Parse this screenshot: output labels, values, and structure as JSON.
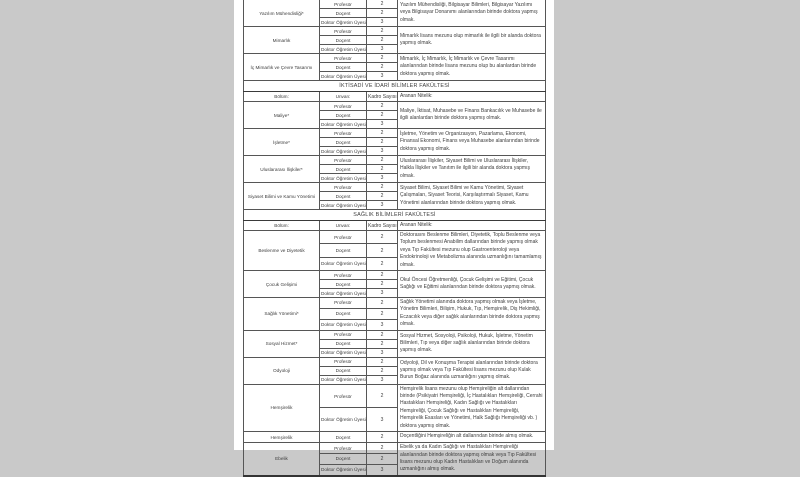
{
  "document": {
    "background_color": "#c9c9c9",
    "page_color": "#ffffff",
    "border_color": "#565656",
    "text_color": "#3d3d3d"
  },
  "table": {
    "column_headers": {
      "department": "Bölüm:",
      "title": "Unvan:",
      "count": "Kadro Sayısı:",
      "requirement": "Aranan Nitelik:"
    },
    "sections": [
      {
        "faculty": null,
        "show_headers": false,
        "blocks": [
          {
            "department": "Yazılım Mühendisliği*",
            "positions": [
              {
                "title": "Profesör",
                "count": "2"
              },
              {
                "title": "Doçent",
                "count": "2"
              },
              {
                "title": "Doktor Öğretim Üyesi",
                "count": "3"
              }
            ],
            "requirement": "Yazılım Mühendisliği, Bilgisayar Bilimleri, Bilgisayar Yazılımı veya Bilgisayar Donanımı alanlarından birinde doktora yapmış olmak."
          },
          {
            "department": "Mimarlık",
            "positions": [
              {
                "title": "Profesör",
                "count": "2"
              },
              {
                "title": "Doçent",
                "count": "2"
              },
              {
                "title": "Doktor Öğretim Üyesi",
                "count": "3"
              }
            ],
            "requirement": "Mimarlık lisans mezunu olup mimarlık ile ilgili bir alanda doktora yapmış olmak."
          },
          {
            "department": "İç Mimarlık ve Çevre Tasarımı",
            "positions": [
              {
                "title": "Profesör",
                "count": "2"
              },
              {
                "title": "Doçent",
                "count": "2"
              },
              {
                "title": "Doktor Öğretim Üyesi",
                "count": "3"
              }
            ],
            "requirement": "Mimarlık, İç Mimarlık, İç Mimarlık ve Çevre Tasarımı alanlarından birinde lisans mezunu olup bu alanlardan birinde doktora yapmış olmak."
          }
        ]
      },
      {
        "faculty": "İKTİSADİ VE İDARİ BİLİMLER FAKÜLTESİ",
        "show_headers": true,
        "blocks": [
          {
            "department": "Maliye*",
            "positions": [
              {
                "title": "Profesör",
                "count": "2"
              },
              {
                "title": "Doçent",
                "count": "2"
              },
              {
                "title": "Doktor Öğretim Üyesi",
                "count": "3"
              }
            ],
            "requirement": "Maliye, İktisat, Muhasebe ve Finans Bankacılık ve Muhasebe ile ilgili alanlardan birinde doktora yapmış olmak."
          },
          {
            "department": "İşletme*",
            "positions": [
              {
                "title": "Profesör",
                "count": "2"
              },
              {
                "title": "Doçent",
                "count": "2"
              },
              {
                "title": "Doktor Öğretim Üyesi",
                "count": "3"
              }
            ],
            "requirement": "İşletme, Yönetim ve Organizasyon, Pazarlama, Ekonomi, Finansal Ekonomi, Finans veya Muhasebe alanlarından birinde doktora yapmış olmak."
          },
          {
            "department": "Uluslararası İlişkiler*",
            "positions": [
              {
                "title": "Profesör",
                "count": "2"
              },
              {
                "title": "Doçent",
                "count": "2"
              },
              {
                "title": "Doktor Öğretim Üyesi",
                "count": "3"
              }
            ],
            "requirement": "Uluslararası İlişkiler, Siyaset Bilimi ve Uluslararası İlişkiler, Halkla İlişkiler ve Tanıtım ile ilgili bir alanda doktora yapmış olmak."
          },
          {
            "department": "Siyaset Bilimi ve Kamu Yönetimi",
            "positions": [
              {
                "title": "Profesör",
                "count": "2"
              },
              {
                "title": "Doçent",
                "count": "2"
              },
              {
                "title": "Doktor Öğretim Üyesi",
                "count": "3"
              }
            ],
            "requirement": "Siyaset Bilimi, Siyaset Bilimi ve Kamu Yönetimi, Siyaset Çalışmaları, Siyaset Teorisi, Karşılaştırmalı Siyaset, Kamu Yönetimi alanlarından birinde doktora yapmış olmak."
          }
        ]
      },
      {
        "faculty": "SAĞLIK BİLİMLERİ FAKÜLTESİ",
        "show_headers": true,
        "blocks": [
          {
            "department": "Beslenme ve Diyetetik",
            "positions": [
              {
                "title": "Profesör",
                "count": "2"
              },
              {
                "title": "Doçent",
                "count": "2"
              },
              {
                "title": "Doktor Öğretim Üyesi",
                "count": "2"
              }
            ],
            "requirement": "Doktorasını Beslenme Bilimleri, Diyetetik, Toplu Beslenme veya Toplum beslenmesi Anabilim dallarından birinde yapmış olmak veya Tıp Fakültesi mezunu olup Gastroenteroloji veya Endokrinoloji ve Metabolizma alanında uzmanlığını tamamlamış olmak."
          },
          {
            "department": "Çocuk Gelişimi",
            "positions": [
              {
                "title": "Profesör",
                "count": "2"
              },
              {
                "title": "Doçent",
                "count": "2"
              },
              {
                "title": "Doktor Öğretim Üyesi",
                "count": "3"
              }
            ],
            "requirement": "Okul Öncesi Öğretmenliği, Çocuk Gelişimi ve Eğitimi, Çocuk Sağlığı ve Eğitimi alanlarından birinde doktora yapmış olmak."
          },
          {
            "department": "Sağlık Yönetimi*",
            "positions": [
              {
                "title": "Profesör",
                "count": "2"
              },
              {
                "title": "Doçent",
                "count": "2"
              },
              {
                "title": "Doktor Öğretim Üyesi",
                "count": "3"
              }
            ],
            "requirement": "Sağlık Yönetimi alanında doktora yapmış olmak veya İşletme, Yönetim Bilimleri, Bilişim, Hukuk, Tıp, Hemşirelik, Diş Hekimliği, Eczacılık veya diğer sağlık alanlarından birinde doktora yapmış olmak."
          },
          {
            "department": "Sosyal Hizmet*",
            "positions": [
              {
                "title": "Profesör",
                "count": "2"
              },
              {
                "title": "Doçent",
                "count": "2"
              },
              {
                "title": "Doktor Öğretim Üyesi",
                "count": "3"
              }
            ],
            "requirement": "Sosyal Hizmet, Sosyoloji, Psikoloji, Hukuk, İşletme, Yönetim Bilimleri, Tıp veya diğer sağlık alanlarından birinde doktora yapmış olmak."
          },
          {
            "department": "Odyoloji",
            "positions": [
              {
                "title": "Profesör",
                "count": "2"
              },
              {
                "title": "Doçent",
                "count": "2"
              },
              {
                "title": "Doktor Öğretim Üyesi",
                "count": "3"
              }
            ],
            "requirement": "Odyoloji, Dil ve Konuşma Terapisi alanlarından birinde doktora yapmış olmak veya Tıp Fakültesi lisans mezunu olup Kulak Burun Boğaz alanında uzmanlığını yapmış olmak."
          },
          {
            "department": "Hemşirelik",
            "positions": [
              {
                "title": "Profesör",
                "count": "2"
              },
              {
                "title": "Doktor Öğretim Üyesi",
                "count": "3"
              }
            ],
            "requirement": "Hemşirelik lisans mezunu olup Hemşireliğin alt dallarından birinde (Psikiyatri Hemşireliği, İç Hastalıkları Hemşireliği, Cerrahi Hastalıkları Hemşireliği, Kadın Sağlığı ve Hastalıkları Hemşireliği, Çocuk Sağlığı ve Hastalıkları Hemşireliği, Hemşirelik Esasları ve Yönetimi, Halk Sağlığı Hemşireliği vb. ) doktora yapmış olmak."
          },
          {
            "department": "Hemşirelik",
            "positions": [
              {
                "title": "Doçent",
                "count": "2"
              }
            ],
            "requirement": "Doçentliğini Hemşireliğin alt dallarından birinde almış olmak."
          },
          {
            "department": "Ebelik",
            "positions": [
              {
                "title": "Profesör",
                "count": "2"
              },
              {
                "title": "Doçent",
                "count": "2"
              },
              {
                "title": "Doktor Öğretim Üyesi",
                "count": "3"
              }
            ],
            "requirement": "Ebelik ya da Kadın Sağlığı ve Hastalıkları Hemşireliği alanlarından birinde doktora yapmış olmak veya Tıp Fakültesi lisans mezunu olup Kadın Hastalıkları ve Doğum alanında uzmanlığını almış olmak."
          }
        ]
      }
    ]
  }
}
